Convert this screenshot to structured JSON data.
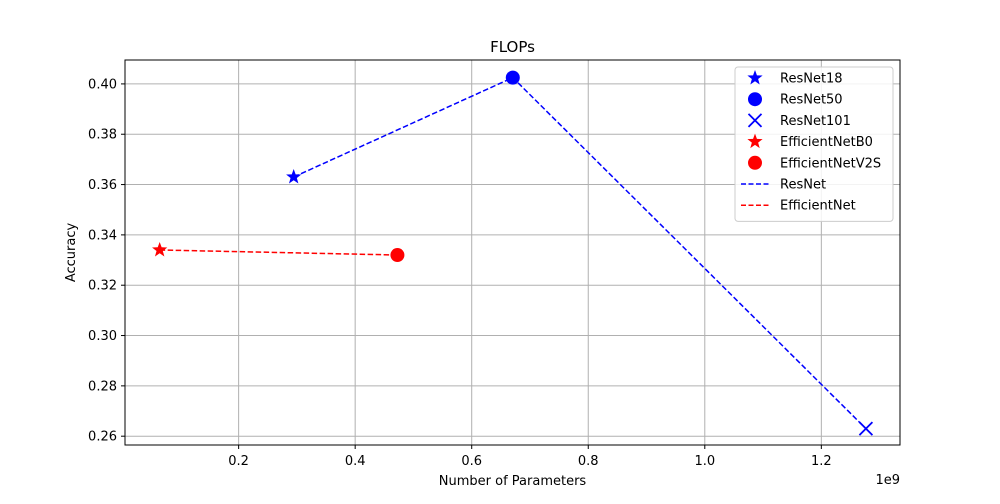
{
  "chart_data": {
    "type": "scatter",
    "title": "FLOPs",
    "xlabel": "Number of Parameters",
    "ylabel": "Accuracy",
    "x_offset_label": "1e9",
    "xlim": [
      5000000.0,
      1335000000.0
    ],
    "ylim": [
      0.2565,
      0.4095
    ],
    "xticks": [
      200000000.0,
      400000000.0,
      600000000.0,
      800000000.0,
      1000000000.0,
      1200000000.0
    ],
    "xtick_labels": [
      "0.2",
      "0.4",
      "0.6",
      "0.8",
      "1.0",
      "1.2"
    ],
    "yticks": [
      0.26,
      0.28,
      0.3,
      0.32,
      0.34,
      0.36,
      0.38,
      0.4
    ],
    "ytick_labels": [
      "0.26",
      "0.28",
      "0.30",
      "0.32",
      "0.34",
      "0.36",
      "0.38",
      "0.40"
    ],
    "grid": true,
    "legend_position": "top-right",
    "points": [
      {
        "name": "ResNet18",
        "x": 294500000.0,
        "y": 0.363,
        "color": "#0000ff",
        "marker": "star"
      },
      {
        "name": "ResNet50",
        "x": 670500000.0,
        "y": 0.4025,
        "color": "#0000ff",
        "marker": "circle"
      },
      {
        "name": "ResNet101",
        "x": 1276500000.0,
        "y": 0.263,
        "color": "#0000ff",
        "marker": "x"
      },
      {
        "name": "EfficientNetB0",
        "x": 64500000.0,
        "y": 0.334,
        "color": "#ff0000",
        "marker": "star"
      },
      {
        "name": "EfficientNetV2S",
        "x": 472500000.0,
        "y": 0.332,
        "color": "#ff0000",
        "marker": "circle"
      }
    ],
    "lines": [
      {
        "name": "ResNet",
        "color": "#0000ff",
        "style": "dashed",
        "x": [
          294500000.0,
          670500000.0,
          1276500000.0
        ],
        "y": [
          0.363,
          0.4025,
          0.263
        ]
      },
      {
        "name": "EfficientNet",
        "color": "#ff0000",
        "style": "dashed",
        "x": [
          64500000.0,
          472500000.0
        ],
        "y": [
          0.334,
          0.332
        ]
      }
    ],
    "legend": [
      {
        "label": "ResNet18",
        "color": "#0000ff",
        "marker": "star"
      },
      {
        "label": "ResNet50",
        "color": "#0000ff",
        "marker": "circle"
      },
      {
        "label": "ResNet101",
        "color": "#0000ff",
        "marker": "x"
      },
      {
        "label": "EfficientNetB0",
        "color": "#ff0000",
        "marker": "star"
      },
      {
        "label": "EfficientNetV2S",
        "color": "#ff0000",
        "marker": "circle"
      },
      {
        "label": "ResNet",
        "color": "#0000ff",
        "marker": "dashed-line"
      },
      {
        "label": "EfficientNet",
        "color": "#ff0000",
        "marker": "dashed-line"
      }
    ]
  }
}
